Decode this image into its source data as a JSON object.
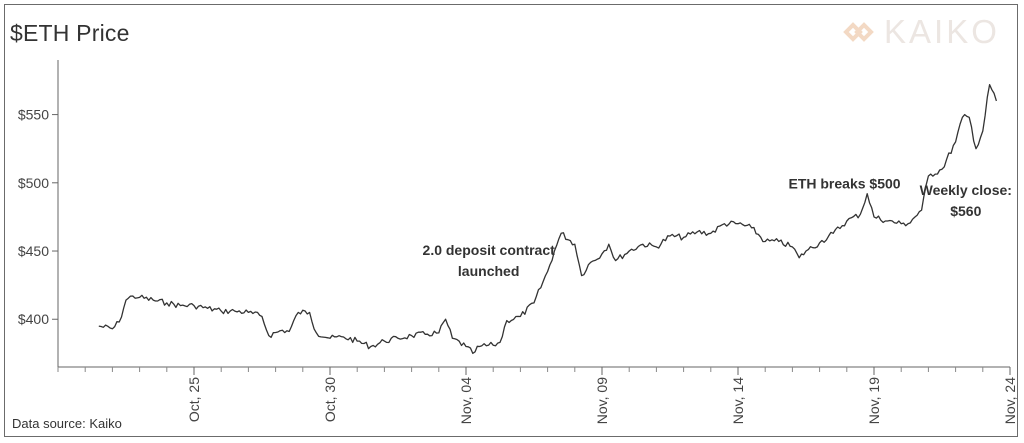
{
  "header": {
    "title": "$ETH Price",
    "logo_text": "KAIKO"
  },
  "footer": {
    "source": "Data source: Kaiko"
  },
  "colors": {
    "line": "#333333",
    "axis": "#666666",
    "logo": "#ece6e2",
    "logo_mark": "#f3d9c4"
  },
  "icons": {
    "logo_mark": "kaiko-logo-icon"
  },
  "chart_data": {
    "type": "line",
    "title": "$ETH Price",
    "xlabel": "",
    "ylabel": "",
    "grid": false,
    "legend": "none",
    "x_unit": "date (2020)",
    "xlim": [
      "2020-10-20",
      "2020-11-24"
    ],
    "ylim": [
      365,
      590
    ],
    "y_ticks": [
      400,
      450,
      500,
      550
    ],
    "y_tick_labels": [
      "$400",
      "$450",
      "$500",
      "$550"
    ],
    "x_ticks": [
      "2020-10-25",
      "2020-10-30",
      "2020-11-04",
      "2020-11-09",
      "2020-11-14",
      "2020-11-19",
      "2020-11-24"
    ],
    "x_tick_labels": [
      "Oct, 25",
      "Oct, 30",
      "Nov, 04",
      "Nov, 09",
      "Nov, 14",
      "Nov, 19",
      "Nov, 24"
    ],
    "series": [
      {
        "points": [
          [
            "2020-10-21T12:00",
            395
          ],
          [
            "2020-10-22T00:00",
            393
          ],
          [
            "2020-10-22T06:00",
            398
          ],
          [
            "2020-10-22T12:00",
            414
          ],
          [
            "2020-10-22T18:00",
            417
          ],
          [
            "2020-10-23T00:00",
            416
          ],
          [
            "2020-10-23T12:00",
            414
          ],
          [
            "2020-10-24T00:00",
            412
          ],
          [
            "2020-10-24T12:00",
            410
          ],
          [
            "2020-10-25T00:00",
            410
          ],
          [
            "2020-10-25T12:00",
            408
          ],
          [
            "2020-10-26T00:00",
            406
          ],
          [
            "2020-10-26T12:00",
            406
          ],
          [
            "2020-10-27T00:00",
            405
          ],
          [
            "2020-10-27T12:00",
            402
          ],
          [
            "2020-10-27T18:00",
            388
          ],
          [
            "2020-10-28T06:00",
            392
          ],
          [
            "2020-10-28T12:00",
            391
          ],
          [
            "2020-10-28T20:00",
            405
          ],
          [
            "2020-10-29T06:00",
            405
          ],
          [
            "2020-10-29T12:00",
            390
          ],
          [
            "2020-10-30T00:00",
            386
          ],
          [
            "2020-10-30T12:00",
            387
          ],
          [
            "2020-10-31T00:00",
            384
          ],
          [
            "2020-10-31T12:00",
            380
          ],
          [
            "2020-11-01T00:00",
            384
          ],
          [
            "2020-11-01T12:00",
            386
          ],
          [
            "2020-11-02T00:00",
            388
          ],
          [
            "2020-11-02T12:00",
            389
          ],
          [
            "2020-11-03T00:00",
            390
          ],
          [
            "2020-11-03T06:00",
            400
          ],
          [
            "2020-11-03T12:00",
            386
          ],
          [
            "2020-11-04T00:00",
            380
          ],
          [
            "2020-11-04T06:00",
            375
          ],
          [
            "2020-11-04T12:00",
            380
          ],
          [
            "2020-11-05T00:00",
            381
          ],
          [
            "2020-11-05T06:00",
            383
          ],
          [
            "2020-11-05T12:00",
            399
          ],
          [
            "2020-11-06T00:00",
            402
          ],
          [
            "2020-11-06T12:00",
            412
          ],
          [
            "2020-11-07T00:00",
            435
          ],
          [
            "2020-11-07T06:00",
            450
          ],
          [
            "2020-11-07T12:00",
            463
          ],
          [
            "2020-11-08T00:00",
            455
          ],
          [
            "2020-11-08T06:00",
            432
          ],
          [
            "2020-11-08T12:00",
            440
          ],
          [
            "2020-11-09T00:00",
            448
          ],
          [
            "2020-11-09T06:00",
            455
          ],
          [
            "2020-11-09T12:00",
            443
          ],
          [
            "2020-11-10T00:00",
            450
          ],
          [
            "2020-11-10T12:00",
            455
          ],
          [
            "2020-11-11T00:00",
            453
          ],
          [
            "2020-11-11T12:00",
            461
          ],
          [
            "2020-11-12T00:00",
            460
          ],
          [
            "2020-11-12T12:00",
            464
          ],
          [
            "2020-11-13T00:00",
            463
          ],
          [
            "2020-11-13T12:00",
            470
          ],
          [
            "2020-11-14T00:00",
            470
          ],
          [
            "2020-11-14T12:00",
            467
          ],
          [
            "2020-11-15T00:00",
            457
          ],
          [
            "2020-11-15T12:00",
            457
          ],
          [
            "2020-11-16T00:00",
            453
          ],
          [
            "2020-11-16T06:00",
            445
          ],
          [
            "2020-11-16T12:00",
            450
          ],
          [
            "2020-11-17T00:00",
            456
          ],
          [
            "2020-11-17T12:00",
            463
          ],
          [
            "2020-11-18T00:00",
            472
          ],
          [
            "2020-11-18T12:00",
            477
          ],
          [
            "2020-11-18T18:00",
            492
          ],
          [
            "2020-11-19T00:00",
            475
          ],
          [
            "2020-11-19T12:00",
            472
          ],
          [
            "2020-11-20T00:00",
            470
          ],
          [
            "2020-11-20T06:00",
            470
          ],
          [
            "2020-11-20T18:00",
            480
          ],
          [
            "2020-11-21T00:00",
            505
          ],
          [
            "2020-11-21T12:00",
            510
          ],
          [
            "2020-11-22T00:00",
            530
          ],
          [
            "2020-11-22T06:00",
            548
          ],
          [
            "2020-11-22T12:00",
            548
          ],
          [
            "2020-11-22T18:00",
            525
          ],
          [
            "2020-11-23T00:00",
            538
          ],
          [
            "2020-11-23T06:00",
            572
          ],
          [
            "2020-11-23T12:00",
            560
          ]
        ]
      }
    ],
    "annotations": [
      {
        "lines": [
          "2.0 deposit contract",
          "launched"
        ],
        "x": "2020-11-04T20:00",
        "y": 447
      },
      {
        "lines": [
          "ETH breaks $500"
        ],
        "x": "2020-11-17T22:00",
        "y": 496
      },
      {
        "lines": [
          "Weekly close:",
          "$560"
        ],
        "x": "2020-11-22T09:00",
        "y": 491
      }
    ]
  }
}
